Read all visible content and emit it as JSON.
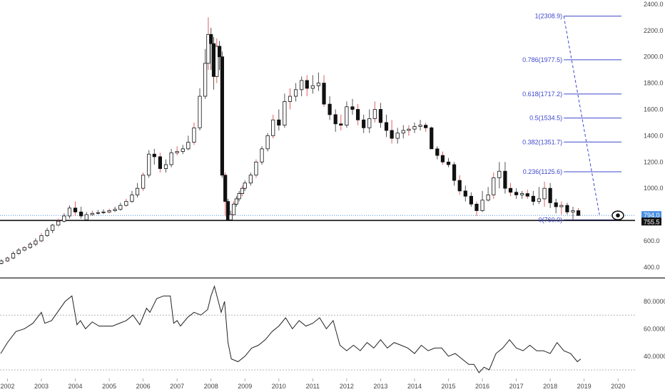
{
  "colors": {
    "background": "#ffffff",
    "candle_up_body": "#ffffff",
    "candle_down_body": "#111111",
    "candle_outline": "#111111",
    "wick": "#555555",
    "wick_accent": "#e06060",
    "fibonacci": "#3f48cc",
    "price_line": "#4a90e2",
    "support_line": "#111111",
    "rsi_line": "#222222",
    "rsi_guides": "#999999",
    "panel_divider": "#222222",
    "label_dark_bg": "#111111",
    "label_blue_bg": "#4a90e2"
  },
  "eye_icon": "eye-icon",
  "chart_data": [
    {
      "type": "candlestick",
      "title": "",
      "x_tick_labels": [
        "2002",
        "2003",
        "2004",
        "2005",
        "2006",
        "2007",
        "2008",
        "2009",
        "2010",
        "2011",
        "2012",
        "2013",
        "2014",
        "2015",
        "2016",
        "2017",
        "2018",
        "2019",
        "2020"
      ],
      "y_tick_labels": [
        "2400.0",
        "2200.0",
        "2000.0",
        "1800.0",
        "1600.0",
        "1400.0",
        "1200.0",
        "1000.0",
        "600.0",
        "400.0"
      ],
      "y_ticks": [
        2400,
        2200,
        2000,
        1800,
        1600,
        1400,
        1200,
        1000,
        600,
        400
      ],
      "ylim": [
        275,
        2410
      ],
      "xlim": [
        2001.78,
        2020.5
      ],
      "current_price": {
        "value": 794.0,
        "label": "794.0"
      },
      "support_level": {
        "value": 755.5,
        "label": "755.5"
      },
      "fibonacci": {
        "levels": [
          {
            "ratio": "1",
            "value": 2308.9,
            "label": "1(2308.9)"
          },
          {
            "ratio": "0.786",
            "value": 1977.5,
            "label": "0.786(1977.5)"
          },
          {
            "ratio": "0.618",
            "value": 1717.2,
            "label": "0.618(1717.2)"
          },
          {
            "ratio": "0.5",
            "value": 1534.5,
            "label": "0.5(1534.5)"
          },
          {
            "ratio": "0.382",
            "value": 1351.7,
            "label": "0.382(1351.7)"
          },
          {
            "ratio": "0.236",
            "value": 1125.6,
            "label": "0.236(1125.6)"
          },
          {
            "ratio": "0",
            "value": 760.0,
            "label": "0(760.0)"
          }
        ],
        "x_start": 2018.4,
        "x_end": 2020.1,
        "trend_start": {
          "x": 2018.4,
          "y": 2308.9
        },
        "trend_end": {
          "x": 2019.45,
          "y": 800
        }
      },
      "series": [
        {
          "kind": "ohlc",
          "x": [
            2001.82,
            2002.0,
            2002.17,
            2002.33,
            2002.5,
            2002.67,
            2002.83,
            2003.0,
            2003.17,
            2003.33,
            2003.5,
            2003.67,
            2003.83,
            2004.0,
            2004.17,
            2004.33,
            2004.5,
            2004.67,
            2004.83,
            2005.0,
            2005.17,
            2005.33,
            2005.5,
            2005.67,
            2005.83,
            2006.0,
            2006.17,
            2006.33,
            2006.5,
            2006.67,
            2006.83,
            2007.0,
            2007.17,
            2007.33,
            2007.5,
            2007.67,
            2007.83,
            2007.92,
            2008.0,
            2008.08,
            2008.17,
            2008.25,
            2008.33,
            2008.42,
            2008.5,
            2008.58,
            2008.67,
            2008.75,
            2008.83,
            2008.92,
            2009.0,
            2009.17,
            2009.33,
            2009.5,
            2009.67,
            2009.83,
            2010.0,
            2010.17,
            2010.33,
            2010.5,
            2010.67,
            2010.83,
            2011.0,
            2011.17,
            2011.33,
            2011.5,
            2011.67,
            2011.83,
            2012.0,
            2012.17,
            2012.33,
            2012.5,
            2012.67,
            2012.83,
            2013.0,
            2013.17,
            2013.33,
            2013.5,
            2013.67,
            2013.83,
            2014.0,
            2014.17,
            2014.33,
            2014.5,
            2014.67,
            2014.83,
            2015.0,
            2015.17,
            2015.33,
            2015.5,
            2015.67,
            2015.83,
            2016.0,
            2016.17,
            2016.33,
            2016.5,
            2016.67,
            2016.83,
            2017.0,
            2017.17,
            2017.33,
            2017.5,
            2017.67,
            2017.83,
            2018.0,
            2018.17,
            2018.33,
            2018.5,
            2018.67,
            2018.83
          ],
          "open": [
            430,
            448,
            470,
            505,
            530,
            550,
            575,
            600,
            640,
            680,
            720,
            750,
            790,
            850,
            820,
            760,
            800,
            810,
            815,
            820,
            830,
            840,
            870,
            900,
            950,
            1000,
            1100,
            1260,
            1240,
            1150,
            1180,
            1270,
            1280,
            1300,
            1350,
            1460,
            1700,
            1950,
            2170,
            2100,
            1850,
            2080,
            2000,
            1100,
            900,
            760,
            800,
            880,
            920,
            960,
            1000,
            1040,
            1100,
            1200,
            1300,
            1400,
            1520,
            1480,
            1660,
            1700,
            1750,
            1820,
            1760,
            1780,
            1800,
            1640,
            1560,
            1490,
            1480,
            1620,
            1600,
            1520,
            1460,
            1530,
            1600,
            1500,
            1440,
            1380,
            1420,
            1440,
            1450,
            1470,
            1480,
            1460,
            1300,
            1250,
            1200,
            1180,
            1060,
            980,
            940,
            880,
            830,
            910,
            950,
            1080,
            1130,
            1000,
            970,
            950,
            960,
            940,
            900,
            920,
            1000,
            890,
            860,
            870,
            820,
            830
          ],
          "high": [
            460,
            480,
            520,
            545,
            560,
            590,
            620,
            660,
            700,
            730,
            770,
            810,
            870,
            900,
            860,
            820,
            830,
            835,
            840,
            845,
            860,
            890,
            920,
            980,
            1040,
            1120,
            1290,
            1300,
            1270,
            1220,
            1300,
            1320,
            1330,
            1400,
            1500,
            1760,
            2060,
            2300,
            2220,
            2150,
            2140,
            2120,
            2040,
            1120,
            920,
            830,
            900,
            940,
            980,
            1020,
            1060,
            1120,
            1220,
            1320,
            1420,
            1560,
            1600,
            1720,
            1760,
            1800,
            1850,
            1860,
            1860,
            1880,
            1860,
            1700,
            1600,
            1560,
            1660,
            1680,
            1640,
            1560,
            1600,
            1660,
            1650,
            1560,
            1520,
            1460,
            1480,
            1480,
            1500,
            1520,
            1500,
            1470,
            1320,
            1280,
            1230,
            1200,
            1100,
            1020,
            970,
            900,
            980,
            1010,
            1120,
            1200,
            1200,
            1040,
            1000,
            980,
            990,
            980,
            1010,
            1050,
            1040,
            920,
            900,
            890,
            860,
            850
          ],
          "low": [
            420,
            440,
            462,
            495,
            520,
            540,
            560,
            590,
            630,
            660,
            710,
            740,
            770,
            790,
            770,
            755,
            790,
            800,
            805,
            810,
            820,
            830,
            860,
            890,
            930,
            980,
            1080,
            1180,
            1120,
            1120,
            1160,
            1250,
            1260,
            1290,
            1330,
            1440,
            1680,
            1900,
            1900,
            1750,
            1800,
            1900,
            1080,
            790,
            755,
            760,
            790,
            860,
            900,
            940,
            980,
            1020,
            1080,
            1180,
            1280,
            1380,
            1440,
            1460,
            1600,
            1660,
            1700,
            1700,
            1720,
            1740,
            1620,
            1520,
            1430,
            1440,
            1460,
            1560,
            1480,
            1420,
            1420,
            1500,
            1460,
            1390,
            1340,
            1340,
            1380,
            1400,
            1420,
            1440,
            1430,
            1300,
            1220,
            1180,
            1160,
            1020,
            950,
            900,
            860,
            790,
            820,
            900,
            920,
            1000,
            960,
            940,
            920,
            920,
            920,
            870,
            880,
            860,
            850,
            810,
            800,
            800,
            760,
            790
          ],
          "close": [
            448,
            470,
            505,
            530,
            550,
            575,
            600,
            640,
            680,
            720,
            750,
            790,
            850,
            820,
            790,
            800,
            810,
            815,
            820,
            830,
            840,
            870,
            900,
            950,
            1000,
            1100,
            1260,
            1240,
            1150,
            1180,
            1270,
            1280,
            1300,
            1350,
            1460,
            1700,
            1950,
            2170,
            2100,
            1850,
            2080,
            2000,
            1100,
            900,
            760,
            800,
            880,
            920,
            960,
            1000,
            1040,
            1100,
            1200,
            1300,
            1400,
            1520,
            1480,
            1660,
            1700,
            1750,
            1820,
            1760,
            1780,
            1800,
            1640,
            1560,
            1490,
            1480,
            1620,
            1600,
            1520,
            1460,
            1530,
            1600,
            1500,
            1440,
            1380,
            1420,
            1440,
            1450,
            1470,
            1480,
            1460,
            1300,
            1250,
            1200,
            1180,
            1060,
            980,
            940,
            880,
            830,
            910,
            950,
            1080,
            1130,
            1000,
            970,
            950,
            960,
            940,
            900,
            920,
            1000,
            890,
            860,
            870,
            820,
            830,
            794
          ]
        }
      ]
    },
    {
      "type": "line",
      "title": "",
      "y_tick_labels": [
        "80.0000",
        "60.0000",
        "40.0000"
      ],
      "y_ticks": [
        80,
        60,
        40
      ],
      "ylim": [
        26.9,
        92.4
      ],
      "xlim": [
        2001.78,
        2020.5
      ],
      "guide_levels": [
        70,
        30
      ],
      "series": [
        {
          "x": [
            2001.8,
            2002.0,
            2002.25,
            2002.5,
            2002.75,
            2003.0,
            2003.1,
            2003.3,
            2003.5,
            2003.7,
            2003.9,
            2004.05,
            2004.15,
            2004.3,
            2004.5,
            2004.7,
            2004.9,
            2005.1,
            2005.3,
            2005.5,
            2005.7,
            2005.9,
            2006.1,
            2006.2,
            2006.4,
            2006.6,
            2006.8,
            2006.9,
            2007.0,
            2007.1,
            2007.3,
            2007.5,
            2007.7,
            2007.9,
            2008.0,
            2008.1,
            2008.3,
            2008.4,
            2008.5,
            2008.6,
            2008.8,
            2009.0,
            2009.2,
            2009.4,
            2009.6,
            2009.8,
            2010.0,
            2010.2,
            2010.4,
            2010.6,
            2010.8,
            2011.0,
            2011.2,
            2011.4,
            2011.6,
            2011.8,
            2012.0,
            2012.2,
            2012.4,
            2012.6,
            2012.8,
            2013.0,
            2013.2,
            2013.4,
            2013.6,
            2013.8,
            2014.0,
            2014.2,
            2014.4,
            2014.6,
            2014.8,
            2015.0,
            2015.2,
            2015.4,
            2015.6,
            2015.75,
            2015.9,
            2016.05,
            2016.2,
            2016.4,
            2016.6,
            2016.8,
            2017.0,
            2017.2,
            2017.4,
            2017.6,
            2017.8,
            2018.0,
            2018.2,
            2018.4,
            2018.6,
            2018.8,
            2018.9
          ],
          "values": [
            42,
            50,
            58,
            60,
            64,
            72,
            64,
            66,
            73,
            80,
            84,
            63,
            66,
            60,
            65,
            62,
            62,
            62,
            64,
            66,
            70,
            63,
            75,
            72,
            82,
            84,
            84,
            64,
            66,
            62,
            68,
            72,
            70,
            74,
            84,
            91,
            72,
            80,
            50,
            38,
            36,
            40,
            46,
            48,
            52,
            58,
            62,
            68,
            60,
            66,
            62,
            64,
            68,
            60,
            66,
            48,
            44,
            48,
            44,
            50,
            46,
            52,
            46,
            50,
            48,
            46,
            42,
            48,
            44,
            46,
            46,
            40,
            42,
            38,
            34,
            34,
            28,
            32,
            30,
            42,
            46,
            52,
            46,
            44,
            48,
            44,
            44,
            42,
            50,
            44,
            42,
            36,
            38
          ]
        }
      ]
    }
  ]
}
